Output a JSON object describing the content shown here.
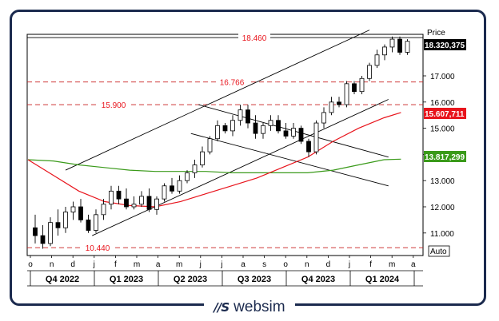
{
  "chart_data": {
    "type": "candlestick",
    "title": "",
    "ylabel": "Price",
    "ylim": [
      10.0,
      19.0
    ],
    "yticks": [
      "11.000",
      "12.000",
      "13.000",
      "14.000",
      "15.000",
      "16.000",
      "17.000"
    ],
    "y_tick_values": [
      11,
      12,
      13,
      14,
      15,
      16,
      17
    ],
    "x_month_labels": [
      "o",
      "n",
      "d",
      "j",
      "f",
      "m",
      "a",
      "m",
      "j",
      "j",
      "a",
      "s",
      "o",
      "n",
      "d",
      "j",
      "f",
      "m",
      "a"
    ],
    "x_quarter_labels": [
      "Q4 2022",
      "Q1 2023",
      "Q2 2023",
      "Q3 2023",
      "Q4 2023",
      "Q1 2024"
    ],
    "price_labels": {
      "last": {
        "text": "18.320,375",
        "value": 18.32,
        "color": "#000000"
      },
      "ma_short": {
        "text": "15.607,711",
        "value": 15.61,
        "color": "#e8141c"
      },
      "ma_long": {
        "text": "13.817,299",
        "value": 13.817,
        "color": "#3a9a1a"
      }
    },
    "scale_button": "Auto",
    "horizontal_levels": [
      {
        "value": 18.46,
        "label": "18.460",
        "style": "solid",
        "color": "#000000"
      },
      {
        "value": 16.766,
        "label": "16.766",
        "style": "dashed",
        "color": "#c81e1e"
      },
      {
        "value": 15.9,
        "label": "15.900",
        "style": "dashed",
        "color": "#c81e1e"
      },
      {
        "value": 10.44,
        "label": "10.440",
        "style": "dashed",
        "color": "#c81e1e"
      }
    ],
    "trendlines": [
      {
        "name": "upper-channel",
        "from": [
          4.0,
          13.4
        ],
        "to": [
          44.0,
          18.75
        ]
      },
      {
        "name": "lower-channel",
        "from": [
          7.5,
          10.9
        ],
        "to": [
          46.5,
          16.1
        ]
      },
      {
        "name": "down-channel-top",
        "from": [
          21.5,
          15.9
        ],
        "to": [
          46.5,
          13.9
        ]
      },
      {
        "name": "down-channel-bottom",
        "from": [
          20.5,
          14.8
        ],
        "to": [
          46.5,
          12.8
        ]
      }
    ],
    "ma_short_points": [
      [
        0,
        13.8
      ],
      [
        3,
        13.2
      ],
      [
        6,
        12.6
      ],
      [
        9,
        12.2
      ],
      [
        12,
        12.05
      ],
      [
        15,
        12.0
      ],
      [
        18,
        12.2
      ],
      [
        21,
        12.5
      ],
      [
        24,
        12.8
      ],
      [
        27,
        13.1
      ],
      [
        30,
        13.5
      ],
      [
        33,
        13.9
      ],
      [
        36,
        14.5
      ],
      [
        39,
        15.0
      ],
      [
        42,
        15.4
      ],
      [
        44,
        15.6
      ]
    ],
    "ma_long_points": [
      [
        0,
        13.8
      ],
      [
        3,
        13.75
      ],
      [
        6,
        13.6
      ],
      [
        9,
        13.5
      ],
      [
        12,
        13.4
      ],
      [
        15,
        13.35
      ],
      [
        18,
        13.35
      ],
      [
        21,
        13.35
      ],
      [
        24,
        13.3
      ],
      [
        27,
        13.3
      ],
      [
        30,
        13.3
      ],
      [
        33,
        13.3
      ],
      [
        36,
        13.4
      ],
      [
        39,
        13.6
      ],
      [
        42,
        13.8
      ],
      [
        44,
        13.82
      ]
    ],
    "candles": [
      {
        "o": 11.2,
        "h": 11.7,
        "l": 10.6,
        "c": 10.9
      },
      {
        "o": 10.9,
        "h": 11.3,
        "l": 10.4,
        "c": 10.6
      },
      {
        "o": 10.6,
        "h": 11.6,
        "l": 10.5,
        "c": 11.4
      },
      {
        "o": 11.4,
        "h": 11.9,
        "l": 10.9,
        "c": 11.2
      },
      {
        "o": 11.2,
        "h": 12.0,
        "l": 11.0,
        "c": 11.8
      },
      {
        "o": 11.8,
        "h": 12.2,
        "l": 11.5,
        "c": 12.0
      },
      {
        "o": 12.0,
        "h": 12.3,
        "l": 11.4,
        "c": 11.5
      },
      {
        "o": 11.5,
        "h": 11.7,
        "l": 11.0,
        "c": 11.1
      },
      {
        "o": 11.1,
        "h": 11.9,
        "l": 11.0,
        "c": 11.7
      },
      {
        "o": 11.7,
        "h": 12.3,
        "l": 11.5,
        "c": 12.1
      },
      {
        "o": 12.1,
        "h": 12.8,
        "l": 11.9,
        "c": 12.6
      },
      {
        "o": 12.6,
        "h": 12.8,
        "l": 12.1,
        "c": 12.3
      },
      {
        "o": 12.3,
        "h": 12.7,
        "l": 11.9,
        "c": 12.0
      },
      {
        "o": 12.0,
        "h": 12.4,
        "l": 11.9,
        "c": 12.1
      },
      {
        "o": 12.1,
        "h": 12.6,
        "l": 12.0,
        "c": 12.4
      },
      {
        "o": 12.4,
        "h": 12.7,
        "l": 11.8,
        "c": 11.9
      },
      {
        "o": 11.9,
        "h": 12.4,
        "l": 11.7,
        "c": 12.3
      },
      {
        "o": 12.3,
        "h": 12.9,
        "l": 12.2,
        "c": 12.8
      },
      {
        "o": 12.8,
        "h": 13.1,
        "l": 12.5,
        "c": 12.6
      },
      {
        "o": 12.6,
        "h": 13.2,
        "l": 12.5,
        "c": 13.0
      },
      {
        "o": 13.0,
        "h": 13.4,
        "l": 12.9,
        "c": 13.3
      },
      {
        "o": 13.3,
        "h": 13.8,
        "l": 13.1,
        "c": 13.6
      },
      {
        "o": 13.6,
        "h": 14.3,
        "l": 13.5,
        "c": 14.1
      },
      {
        "o": 14.1,
        "h": 14.7,
        "l": 14.0,
        "c": 14.6
      },
      {
        "o": 14.6,
        "h": 15.3,
        "l": 14.5,
        "c": 15.1
      },
      {
        "o": 15.1,
        "h": 15.2,
        "l": 14.8,
        "c": 14.9
      },
      {
        "o": 14.9,
        "h": 15.5,
        "l": 14.7,
        "c": 15.3
      },
      {
        "o": 15.3,
        "h": 15.9,
        "l": 15.1,
        "c": 15.7
      },
      {
        "o": 15.7,
        "h": 15.9,
        "l": 15.0,
        "c": 15.2
      },
      {
        "o": 15.2,
        "h": 15.5,
        "l": 14.6,
        "c": 14.8
      },
      {
        "o": 14.8,
        "h": 15.2,
        "l": 14.6,
        "c": 15.1
      },
      {
        "o": 15.1,
        "h": 15.5,
        "l": 14.9,
        "c": 15.3
      },
      {
        "o": 15.3,
        "h": 15.5,
        "l": 14.8,
        "c": 14.9
      },
      {
        "o": 14.9,
        "h": 15.2,
        "l": 14.6,
        "c": 14.7
      },
      {
        "o": 14.7,
        "h": 15.2,
        "l": 14.6,
        "c": 15.0
      },
      {
        "o": 15.0,
        "h": 15.1,
        "l": 14.4,
        "c": 14.5
      },
      {
        "o": 14.5,
        "h": 14.6,
        "l": 13.9,
        "c": 14.1
      },
      {
        "o": 14.1,
        "h": 15.3,
        "l": 14.0,
        "c": 15.2
      },
      {
        "o": 15.2,
        "h": 15.8,
        "l": 15.0,
        "c": 15.6
      },
      {
        "o": 15.6,
        "h": 16.2,
        "l": 15.5,
        "c": 16.0
      },
      {
        "o": 16.0,
        "h": 16.2,
        "l": 15.8,
        "c": 15.9
      },
      {
        "o": 15.9,
        "h": 16.8,
        "l": 15.8,
        "c": 16.7
      },
      {
        "o": 16.7,
        "h": 16.8,
        "l": 16.3,
        "c": 16.4
      },
      {
        "o": 16.4,
        "h": 17.0,
        "l": 16.3,
        "c": 16.9
      },
      {
        "o": 16.9,
        "h": 17.5,
        "l": 16.8,
        "c": 17.4
      },
      {
        "o": 17.4,
        "h": 18.0,
        "l": 17.3,
        "c": 17.8
      },
      {
        "o": 17.8,
        "h": 18.2,
        "l": 17.6,
        "c": 18.1
      },
      {
        "o": 18.1,
        "h": 18.5,
        "l": 17.9,
        "c": 18.4
      },
      {
        "o": 18.4,
        "h": 18.5,
        "l": 17.8,
        "c": 17.9
      },
      {
        "o": 17.9,
        "h": 18.4,
        "l": 17.8,
        "c": 18.32
      }
    ]
  }
}
